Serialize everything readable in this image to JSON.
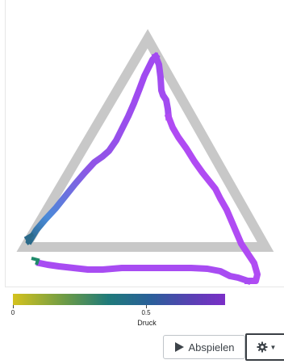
{
  "colorbar": {
    "ticks": [
      "0",
      "0.5"
    ],
    "label": "Druck",
    "colors": [
      "#d4c21e",
      "#6a9a47",
      "#1f7a7a",
      "#2a5f9a",
      "#5b3fb5",
      "#7b2fc7"
    ]
  },
  "drawing": {
    "guide_color": "#c8c8c8",
    "stroke_colors": [
      "#2b6a8a",
      "#4a8ad8",
      "#8f55e6",
      "#a04af0",
      "#b34af5"
    ]
  },
  "toolbar": {
    "play_label": "Abspielen",
    "play_icon": "play-icon",
    "settings_icon": "gear-icon"
  }
}
